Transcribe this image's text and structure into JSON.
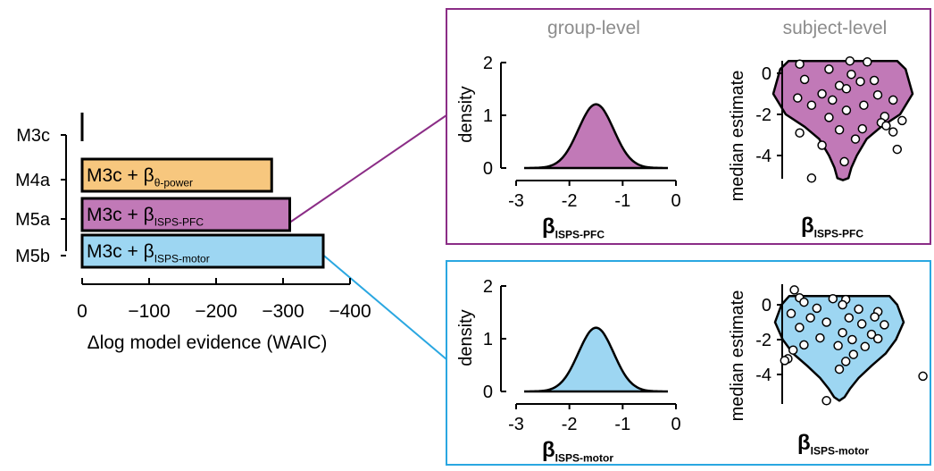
{
  "colors": {
    "orange": "#F7C77E",
    "purple": "#C179B7",
    "blue": "#9DD6F2",
    "purple_border": "#8B2D86",
    "blue_border": "#2AA7E1",
    "header_gray": "#8C8C8C"
  },
  "chart_data": [
    {
      "type": "bar",
      "orientation": "horizontal",
      "categories": [
        "M3c",
        "M4a",
        "M5a",
        "M5b"
      ],
      "values": [
        0,
        -283,
        -310,
        -360
      ],
      "bar_labels": [
        {
          "base": "",
          "sub": ""
        },
        {
          "base": "M3c + β",
          "sub": "θ-power"
        },
        {
          "base": "M3c + β",
          "sub": "ISPS-PFC"
        },
        {
          "base": "M3c + β",
          "sub": "ISPS-motor"
        }
      ],
      "bar_colors": [
        "",
        "#F7C77E",
        "#C179B7",
        "#9DD6F2"
      ],
      "xlabel": "Δlog model evidence (WAIC)",
      "xlim": [
        0,
        -420
      ],
      "xticks": [
        0,
        -100,
        -200,
        -300,
        -400
      ],
      "xtick_labels": [
        "0",
        "−100",
        "−200",
        "−300",
        "−400"
      ]
    },
    {
      "type": "area",
      "panel": "ISPS-PFC",
      "column_header": "group-level",
      "ylabel": "density",
      "xlabel": {
        "base": "β",
        "sub": "ISPS-PFC"
      },
      "xlim": [
        -3,
        0
      ],
      "ylim": [
        0,
        2
      ],
      "xticks": [
        -3,
        -2,
        -1,
        0
      ],
      "xtick_labels": [
        "-3",
        "-2",
        "-1",
        "0"
      ],
      "yticks": [
        0,
        1,
        2
      ],
      "ytick_labels": [
        "0",
        "1",
        "2"
      ],
      "distribution": {
        "mean": -1.5,
        "sd": 0.33,
        "x_range": [
          -2.85,
          -0.15
        ]
      }
    },
    {
      "type": "scatter",
      "subtype": "violin",
      "panel": "ISPS-PFC",
      "column_header": "subject-level",
      "ylabel": "median estimate",
      "xlabel": {
        "base": "β",
        "sub": "ISPS-PFC"
      },
      "ylim": [
        -5.2,
        0.7
      ],
      "yticks": [
        0,
        -2,
        -4
      ],
      "ytick_labels": [
        "0",
        "-2",
        "-4"
      ],
      "violin_width": [
        [
          0.6,
          0.78
        ],
        [
          0.2,
          0.9
        ],
        [
          -1.0,
          1.0
        ],
        [
          -2.0,
          0.82
        ],
        [
          -2.6,
          0.55
        ],
        [
          -3.2,
          0.34
        ],
        [
          -4.0,
          0.2
        ],
        [
          -4.6,
          0.12
        ],
        [
          -5.1,
          0.08
        ],
        [
          -5.2,
          0.0
        ]
      ],
      "points": [
        {
          "x": -0.62,
          "y": 0.45
        },
        {
          "x": 0.1,
          "y": 0.6
        },
        {
          "x": 0.35,
          "y": 0.55
        },
        {
          "x": -0.2,
          "y": 0.2
        },
        {
          "x": 0.12,
          "y": -0.05
        },
        {
          "x": -0.55,
          "y": -0.3
        },
        {
          "x": 0.25,
          "y": -0.4
        },
        {
          "x": -0.05,
          "y": -0.6
        },
        {
          "x": 0.45,
          "y": -0.35
        },
        {
          "x": 0.05,
          "y": -0.75
        },
        {
          "x": -0.3,
          "y": -1.0
        },
        {
          "x": 0.5,
          "y": -1.05
        },
        {
          "x": -0.65,
          "y": -1.2
        },
        {
          "x": -0.15,
          "y": -1.3
        },
        {
          "x": 0.72,
          "y": -1.3
        },
        {
          "x": 0.3,
          "y": -1.55
        },
        {
          "x": -0.45,
          "y": -1.55
        },
        {
          "x": 0.05,
          "y": -1.8
        },
        {
          "x": -0.2,
          "y": -2.15
        },
        {
          "x": 0.6,
          "y": -2.1
        },
        {
          "x": 0.55,
          "y": -2.4
        },
        {
          "x": 0.85,
          "y": -2.3
        },
        {
          "x": 0.28,
          "y": -2.7
        },
        {
          "x": -0.05,
          "y": -2.75
        },
        {
          "x": 0.62,
          "y": -2.55
        },
        {
          "x": -0.62,
          "y": -2.9
        },
        {
          "x": 0.72,
          "y": -2.85
        },
        {
          "x": -0.3,
          "y": -3.5
        },
        {
          "x": 0.18,
          "y": -3.2
        },
        {
          "x": 0.78,
          "y": -3.7
        },
        {
          "x": 0.02,
          "y": -4.3
        },
        {
          "x": -0.45,
          "y": -5.1
        }
      ]
    },
    {
      "type": "area",
      "panel": "ISPS-motor",
      "ylabel": "density",
      "xlabel": {
        "base": "β",
        "sub": "ISPS-motor"
      },
      "xlim": [
        -3,
        0
      ],
      "ylim": [
        0,
        2
      ],
      "xticks": [
        -3,
        -2,
        -1,
        0
      ],
      "xtick_labels": [
        "-3",
        "-2",
        "-1",
        "0"
      ],
      "yticks": [
        0,
        1,
        2
      ],
      "ytick_labels": [
        "0",
        "1",
        "2"
      ],
      "distribution": {
        "mean": -1.5,
        "sd": 0.33,
        "x_range": [
          -2.85,
          -0.15
        ]
      }
    },
    {
      "type": "scatter",
      "subtype": "violin",
      "panel": "ISPS-motor",
      "ylabel": "median estimate",
      "xlabel": {
        "base": "β",
        "sub": "ISPS-motor"
      },
      "ylim": [
        -5.6,
        1.0
      ],
      "yticks": [
        0,
        -2,
        -4
      ],
      "ytick_labels": [
        "0",
        "-2",
        "-4"
      ],
      "violin_width": [
        [
          0.5,
          0.78
        ],
        [
          0.0,
          0.9
        ],
        [
          -1.0,
          1.0
        ],
        [
          -2.0,
          0.88
        ],
        [
          -2.8,
          0.72
        ],
        [
          -3.5,
          0.5
        ],
        [
          -4.2,
          0.3
        ],
        [
          -4.8,
          0.17
        ],
        [
          -5.3,
          0.08
        ],
        [
          -5.5,
          0.0
        ]
      ],
      "points": [
        {
          "x": -0.7,
          "y": 0.85
        },
        {
          "x": -0.62,
          "y": 0.4
        },
        {
          "x": -0.55,
          "y": 0.15
        },
        {
          "x": -0.1,
          "y": 0.35
        },
        {
          "x": 0.1,
          "y": 0.3
        },
        {
          "x": 0.05,
          "y": 0.0
        },
        {
          "x": -0.35,
          "y": -0.2
        },
        {
          "x": 0.3,
          "y": -0.25
        },
        {
          "x": -0.75,
          "y": -0.5
        },
        {
          "x": 0.6,
          "y": -0.4
        },
        {
          "x": 0.55,
          "y": -0.7
        },
        {
          "x": -0.45,
          "y": -0.75
        },
        {
          "x": 0.15,
          "y": -0.75
        },
        {
          "x": -0.2,
          "y": -1.0
        },
        {
          "x": 0.35,
          "y": -1.1
        },
        {
          "x": 0.7,
          "y": -1.15
        },
        {
          "x": -0.62,
          "y": -1.3
        },
        {
          "x": 0.05,
          "y": -1.6
        },
        {
          "x": 0.5,
          "y": -1.7
        },
        {
          "x": -0.3,
          "y": -1.9
        },
        {
          "x": 0.2,
          "y": -2.0
        },
        {
          "x": 0.6,
          "y": -1.95
        },
        {
          "x": -0.55,
          "y": -2.3
        },
        {
          "x": -0.02,
          "y": -2.35
        },
        {
          "x": 0.4,
          "y": -2.4
        },
        {
          "x": -0.72,
          "y": -2.6
        },
        {
          "x": 0.22,
          "y": -2.85
        },
        {
          "x": -0.8,
          "y": -3.1
        },
        {
          "x": 0.1,
          "y": -3.25
        },
        {
          "x": -0.85,
          "y": -3.2
        },
        {
          "x": 0.0,
          "y": -3.7
        },
        {
          "x": 1.3,
          "y": -4.1
        },
        {
          "x": -0.2,
          "y": -5.5
        }
      ]
    }
  ],
  "panel_headers": {
    "group": "group-level",
    "subject": "subject-level"
  }
}
